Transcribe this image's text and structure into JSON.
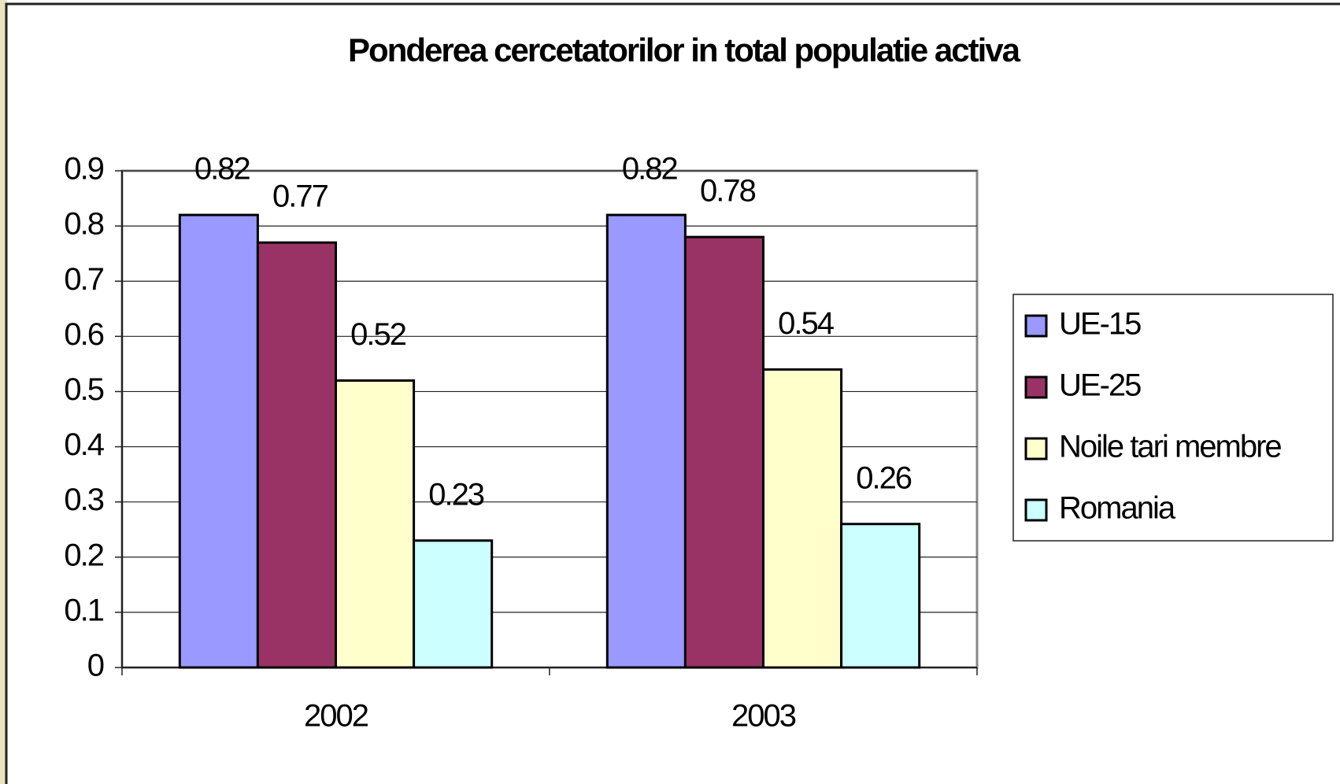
{
  "chart_data": {
    "type": "bar",
    "title": "Ponderea cercetatorilor in total populatie activa",
    "categories": [
      "2002",
      "2003"
    ],
    "series": [
      {
        "name": "UE-15",
        "color": "#9999ff",
        "values": [
          0.82,
          0.82
        ]
      },
      {
        "name": "UE-25",
        "color": "#993366",
        "values": [
          0.77,
          0.78
        ]
      },
      {
        "name": "Noile tari membre",
        "color": "#ffffcc",
        "values": [
          0.52,
          0.54
        ]
      },
      {
        "name": "Romania",
        "color": "#ccffff",
        "values": [
          0.23,
          0.26
        ]
      }
    ],
    "ylim": [
      0,
      0.9
    ],
    "yticks": [
      0,
      0.1,
      0.2,
      0.3,
      0.4,
      0.5,
      0.6,
      0.7,
      0.8,
      0.9
    ],
    "grid": true,
    "legend": "right"
  }
}
